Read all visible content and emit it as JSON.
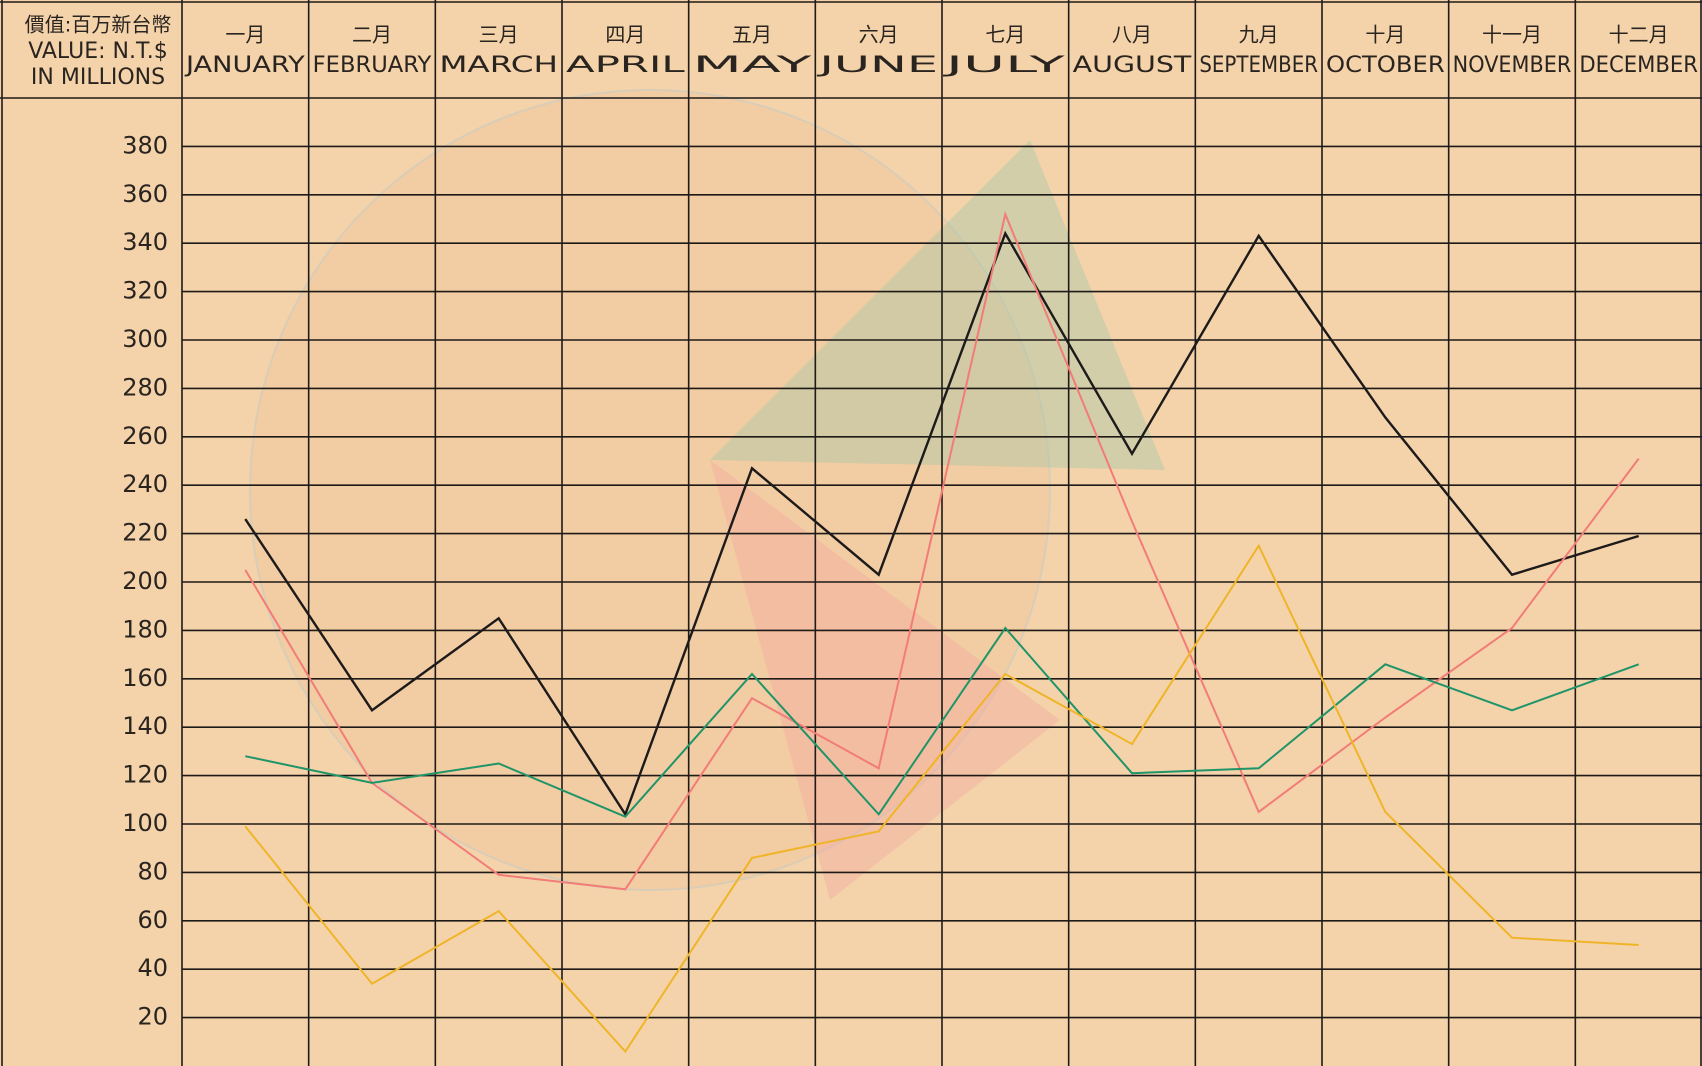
{
  "chart_data": {
    "type": "line",
    "y_label_zh": "價值:百万新台幣",
    "y_label": [
      "VALUE: N.T.$",
      "IN MILLIONS"
    ],
    "categories_zh": [
      "一月",
      "二月",
      "三月",
      "四月",
      "五月",
      "六月",
      "七月",
      "八月",
      "九月",
      "十月",
      "十一月",
      "十二月"
    ],
    "categories": [
      "JANUARY",
      "FEBRUARY",
      "MARCH",
      "APRIL",
      "MAY",
      "JUNE",
      "JULY",
      "AUGUST",
      "SEPTEMBER",
      "OCTOBER",
      "NOVEMBER",
      "DECEMBER"
    ],
    "series": [
      {
        "color": "#1c1a1a",
        "values": [
          226,
          147,
          185,
          104,
          247,
          203,
          344,
          253,
          343,
          268,
          203,
          219
        ]
      },
      {
        "color": "#f27c78",
        "values": [
          205,
          117,
          79,
          73,
          152,
          123,
          352,
          225,
          105,
          144,
          181,
          251
        ]
      },
      {
        "color": "#1f9468",
        "values": [
          128,
          117,
          125,
          103,
          162,
          104,
          181,
          121,
          123,
          166,
          147,
          166
        ]
      },
      {
        "color": "#f0b429",
        "values": [
          99,
          34,
          64,
          6,
          86,
          97,
          162,
          133,
          215,
          105,
          53,
          50
        ]
      }
    ],
    "ylim": [
      0,
      400
    ],
    "yticks": [
      20,
      40,
      60,
      80,
      100,
      120,
      140,
      160,
      180,
      200,
      220,
      240,
      260,
      280,
      300,
      320,
      340,
      360,
      380
    ],
    "grid": true
  }
}
